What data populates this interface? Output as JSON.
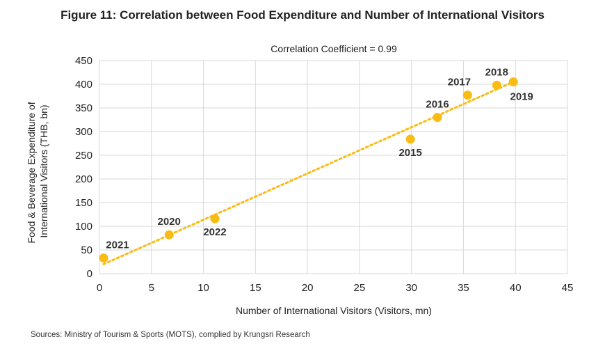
{
  "figure": {
    "title": "Figure 11: Correlation between Food Expenditure and Number of International Visitors",
    "source": "Sources: Ministry of Tourism & Sports (MOTS), complied by Krungsri Research"
  },
  "chart_data": {
    "type": "scatter",
    "subtitle": "Correlation Coefficient = 0.99",
    "xlabel": "Number of International Visitors (Visitors, mn)",
    "ylabel_lines": [
      "Food & Beverage Expenditure of",
      "International Visitors  (THB, bn)"
    ],
    "xlim": [
      0,
      45
    ],
    "ylim": [
      0,
      450
    ],
    "x_ticks": [
      0,
      5,
      10,
      15,
      20,
      25,
      30,
      35,
      40,
      45
    ],
    "y_ticks": [
      0,
      50,
      100,
      150,
      200,
      250,
      300,
      350,
      400,
      450
    ],
    "grid": true,
    "point_color": "#F9BC15",
    "trendline": {
      "style": "dotted",
      "color": "#F9BC15",
      "from": [
        0.4,
        20
      ],
      "to": [
        39.8,
        405
      ]
    },
    "points": [
      {
        "label": "2021",
        "x": 0.4,
        "y": 33,
        "label_pos": "above-right"
      },
      {
        "label": "2020",
        "x": 6.7,
        "y": 82,
        "label_pos": "above"
      },
      {
        "label": "2022",
        "x": 11.1,
        "y": 116,
        "label_pos": "below"
      },
      {
        "label": "2015",
        "x": 29.9,
        "y": 284,
        "label_pos": "below"
      },
      {
        "label": "2016",
        "x": 32.5,
        "y": 330,
        "label_pos": "above"
      },
      {
        "label": "2017",
        "x": 35.4,
        "y": 377,
        "label_pos": "above-left"
      },
      {
        "label": "2018",
        "x": 38.2,
        "y": 398,
        "label_pos": "above"
      },
      {
        "label": "2019",
        "x": 39.8,
        "y": 405,
        "label_pos": "below-right"
      }
    ]
  }
}
